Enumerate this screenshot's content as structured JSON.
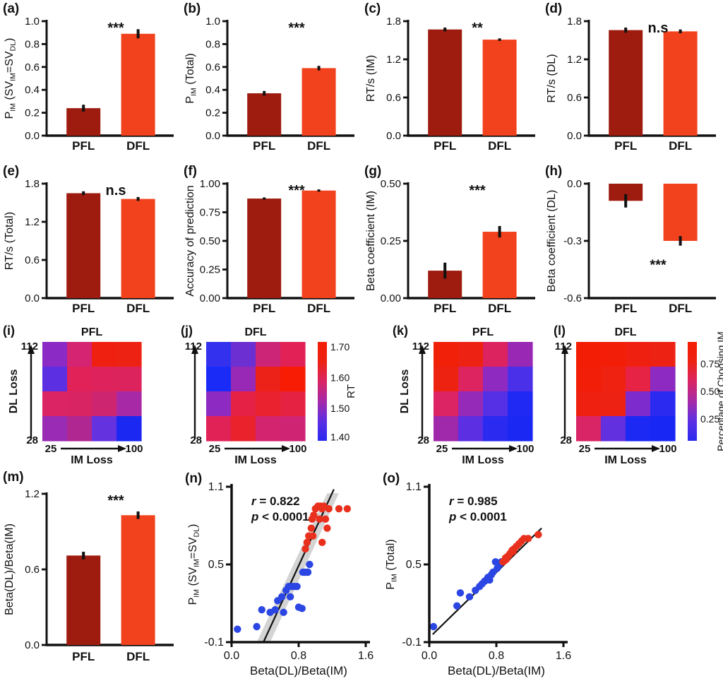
{
  "colors": {
    "bar_pfl": "#9e1c0f",
    "bar_dfl": "#f2421d",
    "scatter_blue": "#2b46e3",
    "scatter_red": "#e9301d",
    "axis": "#111111",
    "band": "#cccccc",
    "heat_gradient": [
      "#f31d05",
      "#ee2213",
      "#d92464",
      "#a629a7",
      "#5c2fe3",
      "#2a2af0"
    ]
  },
  "chart_data": [
    {
      "id": "a",
      "type": "bar",
      "label": "(a)",
      "ylabel": "P{IM} (SV{IM}=SV{DL})",
      "yticks": [
        "0.0",
        "0.2",
        "0.4",
        "0.6",
        "0.8",
        "1.0"
      ],
      "ylim": [
        0,
        1
      ],
      "categories": [
        "PFL",
        "DFL"
      ],
      "values": [
        0.24,
        0.89
      ],
      "errors": [
        0.03,
        0.04
      ],
      "sig": "***"
    },
    {
      "id": "b",
      "type": "bar",
      "label": "(b)",
      "ylabel": "P{IM} (Total)",
      "yticks": [
        "0.0",
        "0.2",
        "0.4",
        "0.6",
        "0.8",
        "1.0"
      ],
      "ylim": [
        0,
        1
      ],
      "categories": [
        "PFL",
        "DFL"
      ],
      "values": [
        0.37,
        0.59
      ],
      "errors": [
        0.02,
        0.02
      ],
      "sig": "***"
    },
    {
      "id": "c",
      "type": "bar",
      "label": "(c)",
      "ylabel": "RT/s (IM)",
      "yticks": [
        "0.0",
        "0.6",
        "1.2",
        "1.8"
      ],
      "ylim": [
        0,
        1.8
      ],
      "categories": [
        "PFL",
        "DFL"
      ],
      "values": [
        1.67,
        1.51
      ],
      "errors": [
        0.03,
        0.02
      ],
      "sig": "**"
    },
    {
      "id": "d",
      "type": "bar",
      "label": "(d)",
      "ylabel": "RT/s (DL)",
      "yticks": [
        "0.0",
        "0.6",
        "1.2",
        "1.8"
      ],
      "ylim": [
        0,
        1.8
      ],
      "categories": [
        "PFL",
        "DFL"
      ],
      "values": [
        1.66,
        1.64
      ],
      "errors": [
        0.04,
        0.03
      ],
      "sig": "n.s"
    },
    {
      "id": "e",
      "type": "bar",
      "label": "(e)",
      "ylabel": "RT/s (Total)",
      "yticks": [
        "0.0",
        "0.6",
        "1.2",
        "1.8"
      ],
      "ylim": [
        0,
        1.8
      ],
      "categories": [
        "PFL",
        "DFL"
      ],
      "values": [
        1.65,
        1.56
      ],
      "errors": [
        0.03,
        0.03
      ],
      "sig": "n.s"
    },
    {
      "id": "f",
      "type": "bar",
      "label": "(f)",
      "ylabel": "Accuracy of prediction",
      "yticks": [
        "0.00",
        "0.25",
        "0.50",
        "0.75",
        "1.00"
      ],
      "ylim": [
        0,
        1
      ],
      "categories": [
        "PFL",
        "DFL"
      ],
      "values": [
        0.87,
        0.94
      ],
      "errors": [
        0.01,
        0.01
      ],
      "sig": "***"
    },
    {
      "id": "g",
      "type": "bar",
      "label": "(g)",
      "ylabel": "Beta coefficient (IM)",
      "yticks": [
        "0.00",
        "0.25",
        "0.50"
      ],
      "ylim": [
        0,
        0.5
      ],
      "categories": [
        "PFL",
        "DFL"
      ],
      "values": [
        0.12,
        0.29
      ],
      "errors": [
        0.035,
        0.025
      ],
      "sig": "***"
    },
    {
      "id": "h",
      "type": "bar",
      "label": "(h)",
      "ylabel": "Beta coefficient (DL)",
      "yticks": [
        "0.0",
        "-0.3",
        "-0.6"
      ],
      "ylim": [
        -0.6,
        0
      ],
      "categories": [
        "PFL",
        "DFL"
      ],
      "values": [
        -0.09,
        -0.3
      ],
      "errors": [
        0.035,
        0.025
      ],
      "sig": "***",
      "sig_value_y": -0.45
    },
    {
      "id": "i",
      "type": "heatmap",
      "label": "(i)",
      "title": "PFL",
      "xlabel": "IM Loss",
      "ylabel": "DL Loss",
      "x_ticks": [
        "25",
        "100"
      ],
      "y_ticks": [
        "112",
        "28"
      ],
      "value_label": "RT",
      "cell_colors": [
        [
          "#8b2ac5",
          "#d42472",
          "#f02010",
          "#ee2213"
        ],
        [
          "#5c2fe3",
          "#e02259",
          "#de235c",
          "#dd235e"
        ],
        [
          "#da2464",
          "#d92463",
          "#ce2571",
          "#a829a5"
        ],
        [
          "#992bb4",
          "#b02792",
          "#6432df",
          "#1a28f2"
        ]
      ],
      "values": [
        [
          1.5,
          1.58,
          1.68,
          1.66
        ],
        [
          1.45,
          1.6,
          1.6,
          1.6
        ],
        [
          1.59,
          1.59,
          1.57,
          1.52
        ],
        [
          1.49,
          1.52,
          1.45,
          1.38
        ]
      ]
    },
    {
      "id": "j",
      "type": "heatmap",
      "label": "(j)",
      "title": "DFL",
      "xlabel": "IM Loss",
      "ylabel": "",
      "x_ticks": [
        "25",
        "100"
      ],
      "y_ticks": [
        "112",
        "28"
      ],
      "value_label": "RT",
      "cell_colors": [
        [
          "#3331ee",
          "#6c30d2",
          "#cc2577",
          "#e22256"
        ],
        [
          "#1b2bf7",
          "#9829b6",
          "#ec2118",
          "#f71c03"
        ],
        [
          "#8d2ac1",
          "#e52246",
          "#ea2230",
          "#e62243"
        ],
        [
          "#e12257",
          "#ea222c",
          "#d32470",
          "#cf2474"
        ]
      ],
      "values": [
        [
          1.42,
          1.46,
          1.56,
          1.61
        ],
        [
          1.4,
          1.49,
          1.63,
          1.69
        ],
        [
          1.5,
          1.62,
          1.63,
          1.62
        ],
        [
          1.6,
          1.63,
          1.56,
          1.55
        ]
      ],
      "colorbar": {
        "label": "RT",
        "ticks": [
          [
            "1.70",
            0.05
          ],
          [
            "1.60",
            0.36
          ],
          [
            "1.50",
            0.67
          ],
          [
            "1.40",
            0.96
          ]
        ]
      }
    },
    {
      "id": "k",
      "type": "heatmap",
      "label": "(k)",
      "title": "PFL",
      "xlabel": "IM Loss",
      "ylabel": "DL Loss",
      "x_ticks": [
        "25",
        "100"
      ],
      "y_ticks": [
        "112",
        "28"
      ],
      "value_label": "Percentage of Choosing IM",
      "cell_colors": [
        [
          "#f12009",
          "#ee2213",
          "#dd235f",
          "#9929b5"
        ],
        [
          "#ee2211",
          "#dd2360",
          "#8e2ac0",
          "#4a31e9"
        ],
        [
          "#dc2363",
          "#962ab8",
          "#5530e5",
          "#2029f3"
        ],
        [
          "#a029ab",
          "#5c2fe3",
          "#2a2af0",
          "#1b28f4"
        ]
      ],
      "values": [
        [
          0.82,
          0.8,
          0.62,
          0.28
        ],
        [
          0.8,
          0.62,
          0.27,
          0.15
        ],
        [
          0.6,
          0.28,
          0.14,
          0.08
        ],
        [
          0.25,
          0.15,
          0.08,
          0.06
        ]
      ]
    },
    {
      "id": "l",
      "type": "heatmap",
      "label": "(l)",
      "title": "DFL",
      "xlabel": "IM Loss",
      "ylabel": "",
      "x_ticks": [
        "25",
        "100"
      ],
      "y_ticks": [
        "112",
        "28"
      ],
      "value_label": "Percentage of Choosing IM",
      "cell_colors": [
        [
          "#f31d05",
          "#f21e08",
          "#f02010",
          "#ee2213"
        ],
        [
          "#f21e07",
          "#ef2111",
          "#e62345",
          "#8c2ac2"
        ],
        [
          "#f02010",
          "#ee2213",
          "#7e2bcd",
          "#2b2af1"
        ],
        [
          "#d92465",
          "#6330df",
          "#1c28f4",
          "#1927f5"
        ]
      ],
      "values": [
        [
          0.85,
          0.85,
          0.83,
          0.8
        ],
        [
          0.85,
          0.83,
          0.75,
          0.28
        ],
        [
          0.82,
          0.8,
          0.24,
          0.1
        ],
        [
          0.58,
          0.18,
          0.08,
          0.06
        ]
      ],
      "colorbar": {
        "label": "Percentage of Choosing IM",
        "ticks": [
          [
            "0.75",
            0.22
          ],
          [
            "0.50",
            0.5
          ],
          [
            "0.25",
            0.78
          ]
        ]
      }
    },
    {
      "id": "m",
      "type": "bar",
      "label": "(m)",
      "ylabel": "Beta(DL)/Beta(IM)",
      "yticks": [
        "0.0",
        "0.6",
        "1.2"
      ],
      "ylim": [
        0,
        1.2
      ],
      "categories": [
        "PFL",
        "DFL"
      ],
      "values": [
        0.71,
        1.03
      ],
      "errors": [
        0.03,
        0.03
      ],
      "sig": "***"
    },
    {
      "id": "n",
      "type": "scatter",
      "label": "(n)",
      "xlabel": "Beta(DL)/Beta(IM)",
      "ylabel": "P{IM} (SV{IM}=SV{DL})",
      "xticks": [
        "0.0",
        "0.8",
        "1.6"
      ],
      "xlim": [
        0,
        1.6
      ],
      "yticks": [
        "-0.1",
        "0.5",
        "1.1"
      ],
      "ylim": [
        -0.1,
        1.1
      ],
      "annotation": {
        "r": "r = 0.822",
        "p": "p < 0.0001"
      },
      "line": [
        [
          0.38,
          -0.1
        ],
        [
          1.22,
          1.08
        ]
      ],
      "band": [
        [
          0.3,
          -0.1
        ],
        [
          0.46,
          -0.1
        ],
        [
          1.28,
          1.05
        ],
        [
          1.14,
          1.05
        ]
      ],
      "series": [
        {
          "name": "blue",
          "points": [
            [
              0.07,
              0.0
            ],
            [
              0.3,
              0.02
            ],
            [
              0.36,
              0.15
            ],
            [
              0.46,
              0.13
            ],
            [
              0.52,
              0.15
            ],
            [
              0.55,
              0.22
            ],
            [
              0.6,
              0.25
            ],
            [
              0.62,
              0.13
            ],
            [
              0.65,
              0.3
            ],
            [
              0.68,
              0.33
            ],
            [
              0.7,
              0.25
            ],
            [
              0.72,
              0.33
            ],
            [
              0.75,
              0.33
            ],
            [
              0.78,
              0.33
            ],
            [
              0.8,
              0.17
            ],
            [
              0.84,
              0.16
            ],
            [
              0.85,
              0.44
            ],
            [
              0.88,
              0.44
            ],
            [
              0.91,
              0.44
            ],
            [
              0.93,
              0.5
            ]
          ]
        },
        {
          "name": "red",
          "points": [
            [
              0.88,
              0.62
            ],
            [
              0.9,
              0.67
            ],
            [
              0.92,
              0.72
            ],
            [
              0.95,
              0.78
            ],
            [
              0.96,
              0.85
            ],
            [
              0.97,
              0.72
            ],
            [
              0.98,
              0.88
            ],
            [
              1.0,
              0.93
            ],
            [
              1.03,
              0.95
            ],
            [
              1.05,
              0.85
            ],
            [
              1.06,
              0.95
            ],
            [
              1.08,
              0.93
            ],
            [
              1.08,
              0.67
            ],
            [
              1.1,
              0.95
            ],
            [
              1.12,
              0.85
            ],
            [
              1.14,
              0.78
            ],
            [
              1.16,
              0.93
            ],
            [
              1.28,
              0.93
            ],
            [
              1.38,
              0.93
            ]
          ]
        }
      ]
    },
    {
      "id": "o",
      "type": "scatter",
      "label": "(o)",
      "xlabel": "Beta(DL)/Beta(IM)",
      "ylabel": "P{IM} (Total)",
      "xticks": [
        "0.0",
        "0.8",
        "1.6"
      ],
      "xlim": [
        0,
        1.6
      ],
      "yticks": [
        "-0.1",
        "0.5",
        "1.1"
      ],
      "ylim": [
        -0.1,
        1.1
      ],
      "annotation": {
        "r": "r = 0.985",
        "p": "p < 0.0001"
      },
      "line": [
        [
          0.04,
          -0.04
        ],
        [
          1.34,
          0.78
        ]
      ],
      "band": null,
      "series": [
        {
          "name": "blue",
          "points": [
            [
              0.05,
              0.02
            ],
            [
              0.33,
              0.18
            ],
            [
              0.37,
              0.28
            ],
            [
              0.48,
              0.25
            ],
            [
              0.55,
              0.3
            ],
            [
              0.6,
              0.33
            ],
            [
              0.63,
              0.35
            ],
            [
              0.66,
              0.37
            ],
            [
              0.68,
              0.38
            ],
            [
              0.7,
              0.4
            ],
            [
              0.72,
              0.38
            ],
            [
              0.74,
              0.42
            ],
            [
              0.76,
              0.44
            ],
            [
              0.79,
              0.52
            ],
            [
              0.81,
              0.47
            ],
            [
              0.84,
              0.5
            ],
            [
              0.86,
              0.52
            ]
          ]
        },
        {
          "name": "red",
          "points": [
            [
              0.88,
              0.52
            ],
            [
              0.9,
              0.53
            ],
            [
              0.91,
              0.55
            ],
            [
              0.92,
              0.54
            ],
            [
              0.93,
              0.56
            ],
            [
              0.95,
              0.57
            ],
            [
              0.96,
              0.58
            ],
            [
              0.97,
              0.59
            ],
            [
              0.99,
              0.61
            ],
            [
              1.0,
              0.6
            ],
            [
              1.01,
              0.62
            ],
            [
              1.04,
              0.64
            ],
            [
              1.07,
              0.66
            ],
            [
              1.1,
              0.68
            ],
            [
              1.13,
              0.7
            ],
            [
              1.18,
              0.7
            ],
            [
              1.3,
              0.73
            ]
          ]
        }
      ]
    }
  ]
}
